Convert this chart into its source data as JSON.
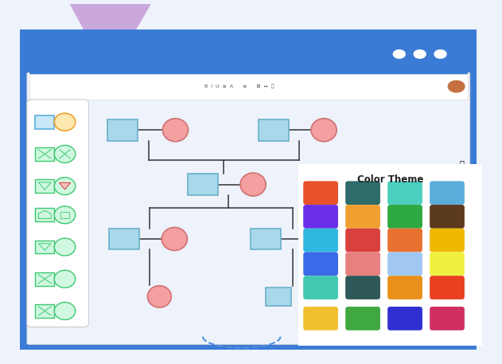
{
  "bg_outer": "#eef2fb",
  "bg_browser": "#3a7bd5",
  "bg_canvas": "#eef2fb",
  "toolbar_color": "#ffffff",
  "line_color": "#333333",
  "color_theme_title": "Color Theme",
  "color_theme_colors": [
    [
      "#e8522a",
      "#2e6b6b",
      "#4dcfbf",
      "#5baddb"
    ],
    [
      "#6b2ee8",
      "#f0a030",
      "#2ea840",
      "#5c3a1e"
    ],
    [
      "#30b8e0",
      "#d94040",
      "#e87030",
      "#f0b800"
    ],
    [
      "#3a6ae8",
      "#e88080",
      "#a0c8f0",
      "#f0f040"
    ],
    [
      "#40c8b0",
      "#2e5858",
      "#e8901a",
      "#e84020"
    ],
    [
      "#f0c030",
      "#40a840",
      "#3030d0",
      "#d03060"
    ]
  ],
  "male_fill": "#a8d8ea",
  "male_edge": "#6ab0cc",
  "female_fill": "#f4a0a0",
  "female_edge": "#d07070",
  "green_fill": "#d0f8e0",
  "green_edge": "#3dc870",
  "blue_sq_fill": "#c8e8f8",
  "blue_sq_edge": "#5baddb",
  "orange_ci_fill": "#fde8b0",
  "orange_ci_edge": "#f0a030",
  "purple_tri": "#c8a0d8",
  "dashed_arc_color": "#5090e0"
}
